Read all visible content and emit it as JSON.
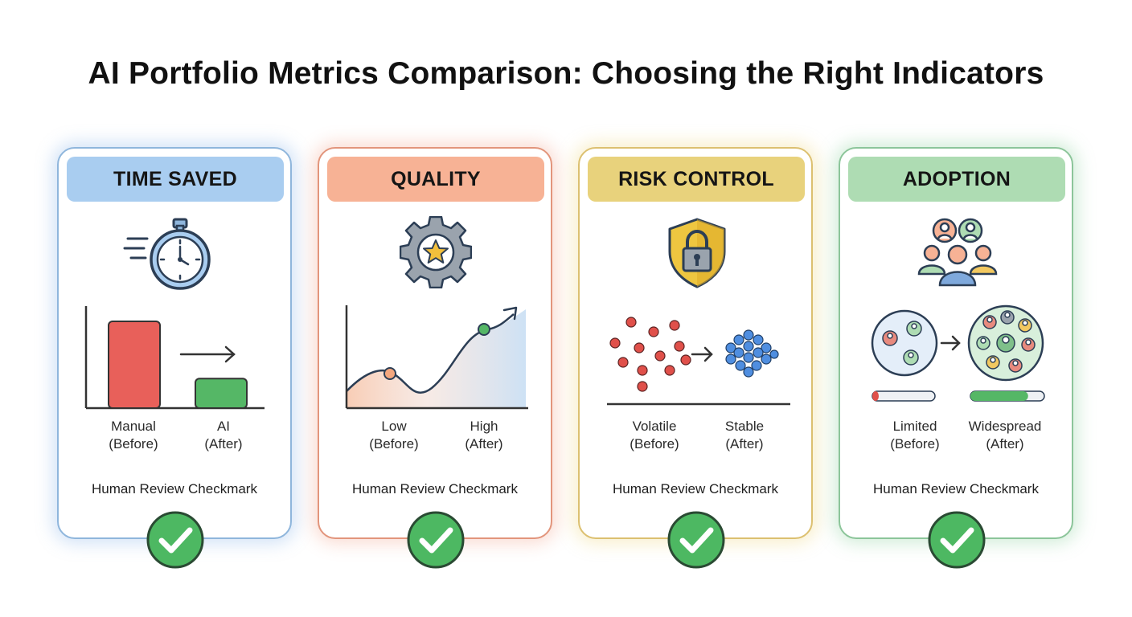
{
  "title": "AI Portfolio Metrics Comparison: Choosing the Right Indicators",
  "cards": [
    {
      "header": "TIME SAVED",
      "icon": "stopwatch-icon",
      "before_label": "Manual\n(Before)",
      "after_label": "AI\n(After)",
      "review": "Human Review Checkmark",
      "accent": "#8fb6dc",
      "viz": {
        "type": "bar",
        "before_value": 1.0,
        "after_value": 0.34
      }
    },
    {
      "header": "QUALITY",
      "icon": "gear-star-icon",
      "before_label": "Low\n(Before)",
      "after_label": "High\n(After)",
      "review": "Human Review Checkmark",
      "accent": "#e2957c",
      "viz": {
        "type": "curve"
      }
    },
    {
      "header": "RISK CONTROL",
      "icon": "shield-lock-icon",
      "before_label": "Volatile\n(Before)",
      "after_label": "Stable\n(After)",
      "review": "Human Review Checkmark",
      "accent": "#dcc070",
      "viz": {
        "type": "scatter"
      }
    },
    {
      "header": "ADOPTION",
      "icon": "users-group-icon",
      "before_label": "Limited\n(Before)",
      "after_label": "Widespread\n(After)",
      "review": "Human Review Checkmark",
      "accent": "#8cc59a",
      "viz": {
        "type": "adoption",
        "before_progress": 0.1,
        "after_progress": 0.78
      }
    }
  ],
  "colors": {
    "check_green": "#4db862",
    "bar_red": "#e8605a",
    "bar_green": "#55b766"
  }
}
